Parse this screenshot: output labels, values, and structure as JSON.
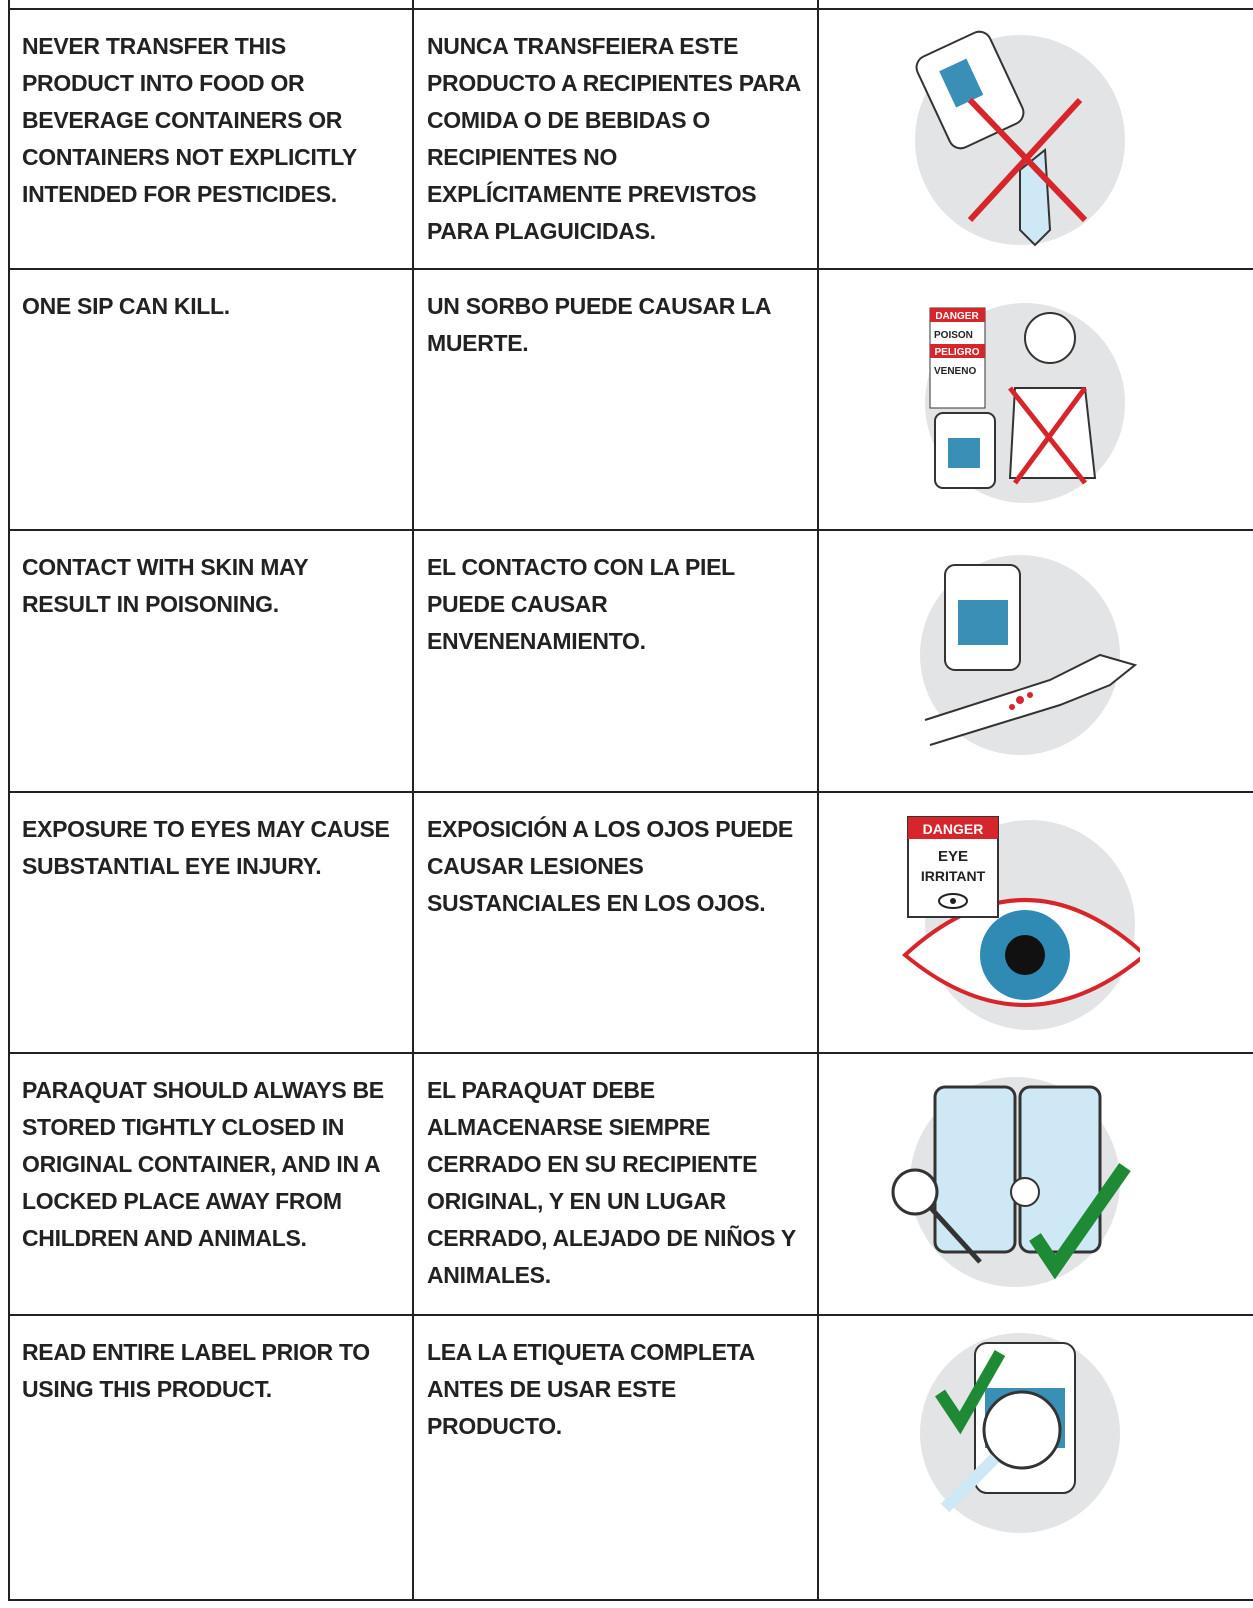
{
  "table": {
    "rows": [
      {
        "en": "NEVER TRANSFER THIS PRODUCT INTO FOOD OR BEVERAGE CONTAINERS OR CONTAINERS NOT EXPLICITLY INTENDED FOR PESTICIDES.",
        "es": "NUNCA TRANSFEIERA ESTE PRODUCTO A RECIPIENTES PARA COMIDA O DE BEBIDAS O RECIPIENTES NO EXPLÍCITAMENTE PREVISTOS PARA PLAGUICIDAS."
      },
      {
        "en": "ONE SIP CAN KILL.",
        "es": "UN SORBO PUEDE CAUSAR LA MUERTE.",
        "icon_text": [
          "DANGER",
          "POISON",
          "PELIGRO",
          "VENENO"
        ]
      },
      {
        "en": "CONTACT WITH SKIN MAY RESULT IN POISONING.",
        "es": "EL CONTACTO CON LA PIEL PUEDE CAUSAR ENVENENAMIENTO."
      },
      {
        "en": "EXPOSURE TO EYES MAY CAUSE SUBSTANTIAL EYE INJURY.",
        "es": "EXPOSICIÓN A LOS OJOS PUEDE CAUSAR LESIONES SUSTANCIALES EN LOS OJOS.",
        "icon_text": [
          "DANGER",
          "EYE",
          "IRRITANT"
        ]
      },
      {
        "en": "PARAQUAT SHOULD ALWAYS BE STORED TIGHTLY CLOSED IN ORIGINAL CONTAINER, AND IN A LOCKED PLACE AWAY FROM CHILDREN AND ANIMALS.",
        "es": "EL PARAQUAT DEBE ALMACENARSE SIEMPRE CERRADO EN SU RECIPIENTE ORIGINAL, Y EN UN LUGAR CERRADO, ALEJADO DE NIÑOS Y ANIMALES."
      },
      {
        "en": "READ ENTIRE LABEL PRIOR TO USING THIS PRODUCT.",
        "es": "LEA LA ETIQUETA COMPLETA ANTES DE USAR ESTE PRODUCTO."
      }
    ]
  }
}
